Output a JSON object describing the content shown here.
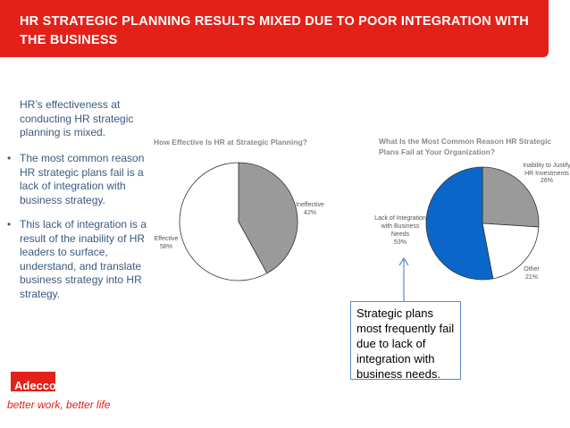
{
  "title": "HR STRATEGIC PLANNING RESULTS MIXED DUE TO POOR INTEGRATION WITH THE BUSINESS",
  "intro": "HR’s effectiveness at conducting HR strategic planning is mixed.",
  "bullets": [
    "The most common reason HR strategic plans fail is a lack of integration with business strategy.",
    "This lack of integration is a result of the inability of HR leaders to surface, understand, and translate business strategy into HR strategy."
  ],
  "bullet_char": "•",
  "chart_data": [
    {
      "type": "pie",
      "title": "How Effective Is HR at Strategic Planning?",
      "labels": [
        "Ineffective",
        "Effective"
      ],
      "values": [
        42,
        58
      ],
      "value_labels": [
        "42%",
        "58%"
      ],
      "colors": [
        "#9a9a9a",
        "#ffffff"
      ]
    },
    {
      "type": "pie",
      "title": "What Is the Most Common Reason HR Strategic Plans Fail at Your Organization?",
      "labels": [
        "Inability to Justify HR Investments",
        "Other",
        "Lack of Integration with Business Needs"
      ],
      "values": [
        26,
        21,
        53
      ],
      "value_labels": [
        "26%",
        "21%",
        "53%"
      ],
      "colors": [
        "#9a9a9a",
        "#ffffff",
        "#0a67c9"
      ]
    }
  ],
  "callout": "Strategic plans most frequently fail due to lack of integration with business needs.",
  "logo": "Adecco",
  "tagline": "better work, better life",
  "colors": {
    "brand_red": "#e32119",
    "text_blue": "#3a5a80",
    "callout_border": "#5b8ac9"
  }
}
